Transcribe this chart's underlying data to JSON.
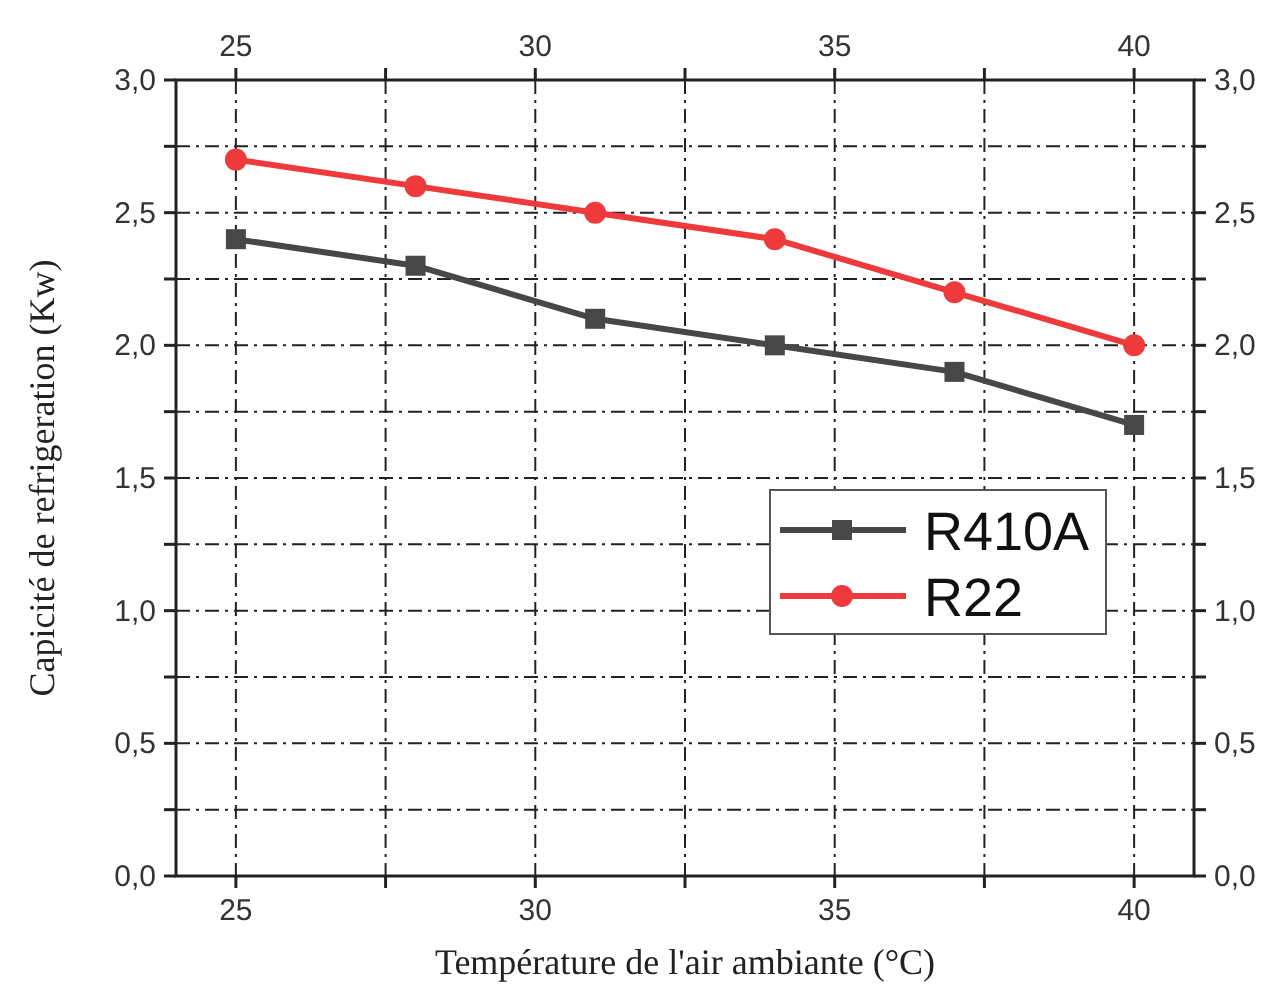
{
  "chart_data": {
    "type": "line",
    "xlabel": "Température de l'air ambiante (°C)",
    "ylabel": "Capicité de refrigeration (Kw)",
    "x": [
      25,
      28,
      31,
      34,
      37,
      40
    ],
    "series": [
      {
        "name": "R410A",
        "color": "#474747",
        "values": [
          2.4,
          2.3,
          2.1,
          2.0,
          1.9,
          1.7
        ],
        "marker": "square"
      },
      {
        "name": "R22",
        "color": "#ee3a3a",
        "values": [
          2.7,
          2.6,
          2.5,
          2.4,
          2.2,
          2.0
        ],
        "marker": "circle"
      }
    ],
    "xlim": [
      24,
      41
    ],
    "xticks": [
      25,
      {
        "value": 27.5,
        "label": null
      },
      30,
      {
        "value": 32.5,
        "label": null
      },
      35,
      {
        "value": 37.5,
        "label": null
      },
      40
    ],
    "x2lim": [
      24,
      41
    ],
    "x2ticks": [
      25,
      {
        "value": 27.5,
        "label": null
      },
      30,
      {
        "value": 32.5,
        "label": null
      },
      35,
      {
        "value": 37.5,
        "label": null
      },
      40
    ],
    "ylim": [
      0,
      3
    ],
    "yticks": [
      {
        "value": 0,
        "label": "0,0"
      },
      {
        "value": 0.25,
        "label": null
      },
      {
        "value": 0.5,
        "label": "0,5"
      },
      {
        "value": 0.75,
        "label": null
      },
      {
        "value": 1,
        "label": "1,0"
      },
      {
        "value": 1.25,
        "label": null
      },
      {
        "value": 1.5,
        "label": "1,5"
      },
      {
        "value": 1.75,
        "label": null
      },
      {
        "value": 2,
        "label": "2,0"
      },
      {
        "value": 2.25,
        "label": null
      },
      {
        "value": 2.5,
        "label": "2,5"
      },
      {
        "value": 2.75,
        "label": null
      },
      {
        "value": 3,
        "label": "3,0"
      }
    ],
    "y2lim": [
      0,
      3
    ],
    "y2ticks": [
      {
        "value": 0,
        "label": "0,0"
      },
      {
        "value": 0.25,
        "label": null
      },
      {
        "value": 0.5,
        "label": "0,5"
      },
      {
        "value": 0.75,
        "label": null
      },
      {
        "value": 1,
        "label": "1,0"
      },
      {
        "value": 1.25,
        "label": null
      },
      {
        "value": 1.5,
        "label": "1,5"
      },
      {
        "value": 1.75,
        "label": null
      },
      {
        "value": 2,
        "label": "2,0"
      },
      {
        "value": 2.25,
        "label": null
      },
      {
        "value": 2.5,
        "label": "2,5"
      },
      {
        "value": 2.75,
        "label": null
      },
      {
        "value": 3,
        "label": "3,0"
      }
    ],
    "grid": true,
    "legend": "right",
    "line_style": "solid"
  }
}
